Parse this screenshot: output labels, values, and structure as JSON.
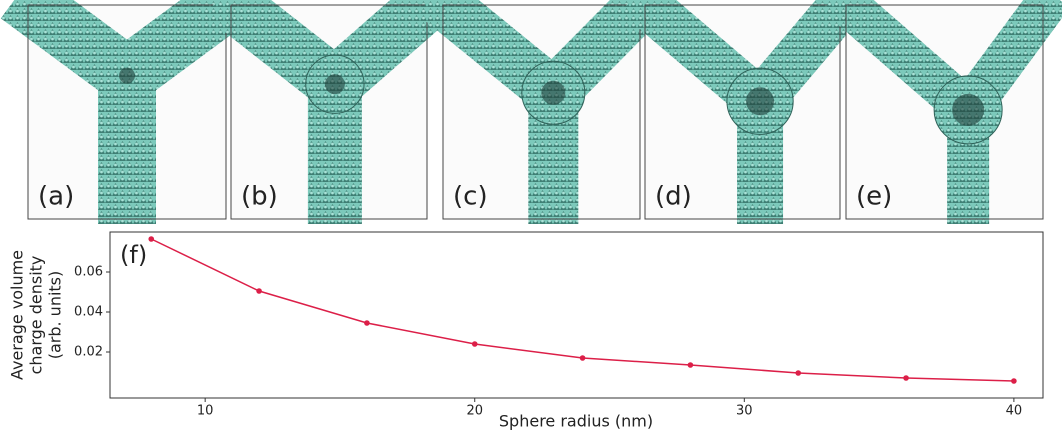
{
  "panels": [
    "(a)",
    "(b)",
    "(c)",
    "(d)",
    "(e)"
  ],
  "chart_data": {
    "type": "line",
    "annotation": "(f)",
    "x_label": "Sphere radius (nm)",
    "y_label": [
      "Average volume",
      "charge density",
      "(arb. units)"
    ],
    "x": [
      8,
      12,
      16,
      20,
      24,
      28,
      32,
      36,
      40
    ],
    "series": [
      {
        "color": "#dc1f48",
        "values": [
          0.0765,
          0.0505,
          0.0345,
          0.024,
          0.017,
          0.0135,
          0.0095,
          0.007,
          0.0055
        ]
      }
    ],
    "xlim": [
      6.47,
      41.08
    ],
    "xticks": [
      10,
      20,
      30,
      40
    ],
    "ylim": [
      -0.003,
      0.08
    ],
    "yticks": [
      0.02,
      0.04,
      0.06
    ]
  }
}
